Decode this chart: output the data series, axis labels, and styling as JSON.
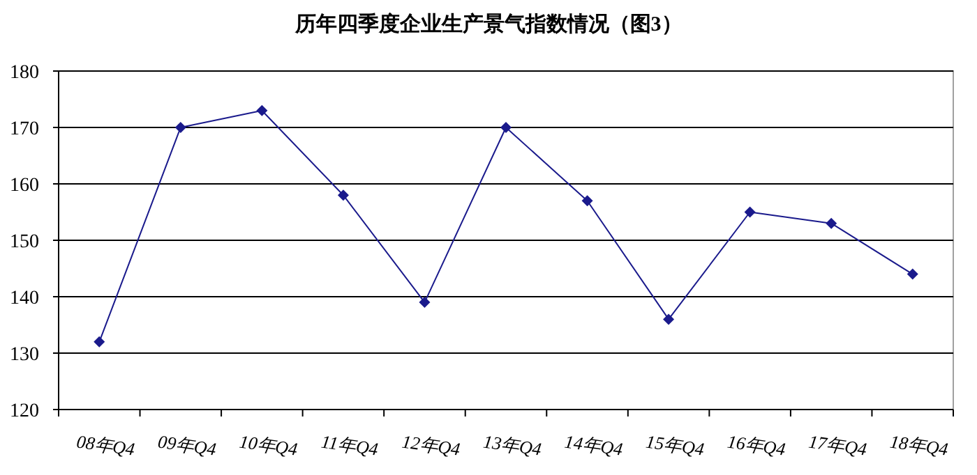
{
  "chart_data": {
    "type": "line",
    "title": "历年四季度企业生产景气指数情况（图3）",
    "categories": [
      "08年Q4",
      "09年Q4",
      "10年Q4",
      "11年Q4",
      "12年Q4",
      "13年Q4",
      "14年Q4",
      "15年Q4",
      "16年Q4",
      "17年Q4",
      "18年Q4"
    ],
    "series": [
      {
        "color": "#1a1a8c",
        "values": [
          132,
          170,
          173,
          158,
          139,
          170,
          157,
          136,
          155,
          153,
          144
        ]
      }
    ],
    "ylim": [
      120,
      180
    ],
    "yticks": [
      120,
      130,
      140,
      150,
      160,
      170,
      180
    ],
    "grid": "y",
    "marker": "diamond",
    "line_style": "solid"
  }
}
